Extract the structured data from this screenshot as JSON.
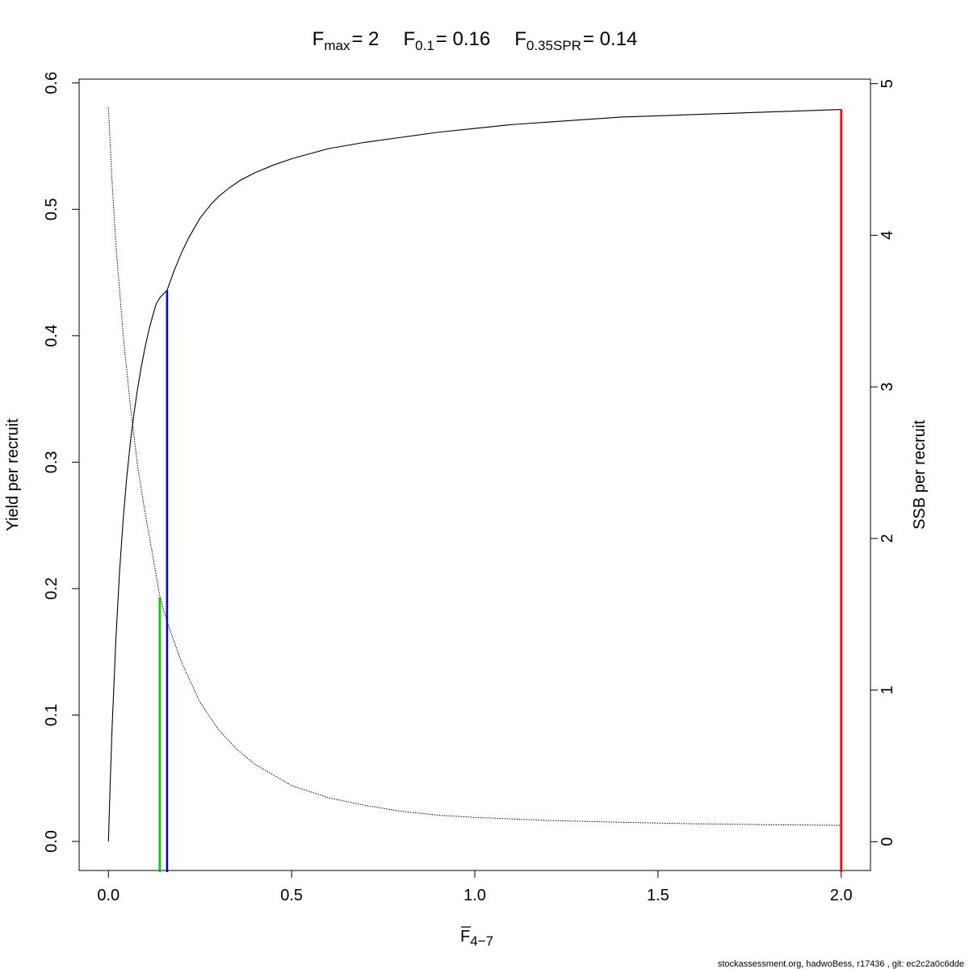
{
  "chart_data": {
    "type": "line",
    "title_parts": {
      "fmax": {
        "symbol": "F",
        "sub": "max",
        "value": "= 2"
      },
      "f01": {
        "symbol": "F",
        "sub": "0.1",
        "value": "= 0.16"
      },
      "fspr": {
        "symbol": "F",
        "sub": "0.35SPR",
        "value": "= 0.14"
      }
    },
    "xlabel": {
      "symbol": "F",
      "sub": "4−7"
    },
    "ylabel": "Yield per recruit",
    "y2label": "SSB per recruit",
    "xlim": [
      -0.08,
      2.08
    ],
    "ylim": [
      -0.023,
      0.603
    ],
    "y2lim": [
      -0.19,
      5.03
    ],
    "x_ticks": [
      {
        "value": 0.0,
        "label": "0.0"
      },
      {
        "value": 0.5,
        "label": "0.5"
      },
      {
        "value": 1.0,
        "label": "1.0"
      },
      {
        "value": 1.5,
        "label": "1.5"
      },
      {
        "value": 2.0,
        "label": "2.0"
      }
    ],
    "y_ticks": [
      {
        "value": 0.0,
        "label": "0.0"
      },
      {
        "value": 0.1,
        "label": "0.1"
      },
      {
        "value": 0.2,
        "label": "0.2"
      },
      {
        "value": 0.3,
        "label": "0.3"
      },
      {
        "value": 0.4,
        "label": "0.4"
      },
      {
        "value": 0.5,
        "label": "0.5"
      },
      {
        "value": 0.6,
        "label": "0.6"
      }
    ],
    "y2_ticks": [
      {
        "value": 0,
        "label": "0"
      },
      {
        "value": 1,
        "label": "1"
      },
      {
        "value": 2,
        "label": "2"
      },
      {
        "value": 3,
        "label": "3"
      },
      {
        "value": 4,
        "label": "4"
      },
      {
        "value": 5,
        "label": "5"
      }
    ],
    "series": [
      {
        "axis": "left",
        "style": "solid",
        "color": "#000000",
        "x": [
          0,
          0.005,
          0.01,
          0.02,
          0.03,
          0.04,
          0.05,
          0.06,
          0.07,
          0.08,
          0.09,
          0.1,
          0.11,
          0.12,
          0.13,
          0.14,
          0.15,
          0.16,
          0.18,
          0.2,
          0.22,
          0.25,
          0.28,
          0.3,
          0.33,
          0.36,
          0.4,
          0.45,
          0.5,
          0.55,
          0.6,
          0.7,
          0.8,
          0.9,
          1.0,
          1.1,
          1.2,
          1.3,
          1.4,
          1.5,
          1.6,
          1.7,
          1.8,
          1.9,
          2.0
        ],
        "y": [
          0,
          0.048,
          0.09,
          0.158,
          0.212,
          0.254,
          0.288,
          0.316,
          0.339,
          0.359,
          0.376,
          0.391,
          0.404,
          0.415,
          0.425,
          0.43,
          0.433,
          0.436,
          0.452,
          0.466,
          0.478,
          0.493,
          0.504,
          0.51,
          0.517,
          0.523,
          0.529,
          0.535,
          0.54,
          0.544,
          0.548,
          0.553,
          0.557,
          0.561,
          0.564,
          0.567,
          0.569,
          0.571,
          0.573,
          0.574,
          0.575,
          0.576,
          0.577,
          0.578,
          0.579
        ]
      },
      {
        "axis": "right",
        "style": "dotted",
        "color": "#000000",
        "x": [
          0,
          0.01,
          0.02,
          0.04,
          0.06,
          0.08,
          0.1,
          0.12,
          0.14,
          0.16,
          0.2,
          0.25,
          0.3,
          0.35,
          0.4,
          0.5,
          0.6,
          0.7,
          0.8,
          0.9,
          1.0,
          1.2,
          1.4,
          1.6,
          1.8,
          2.0
        ],
        "y": [
          4.84,
          4.35,
          3.95,
          3.35,
          2.87,
          2.47,
          2.17,
          1.9,
          1.62,
          1.45,
          1.18,
          0.92,
          0.74,
          0.61,
          0.51,
          0.37,
          0.29,
          0.24,
          0.2,
          0.175,
          0.16,
          0.14,
          0.128,
          0.118,
          0.112,
          0.108
        ]
      }
    ],
    "reference_lines": [
      {
        "name": "Fmax",
        "x": 2.0,
        "y_top": 0.579,
        "color": "#ff0000"
      },
      {
        "name": "F0.1",
        "x": 0.16,
        "y_top": 0.436,
        "color": "#0000ff"
      },
      {
        "name": "F0.35SPR",
        "x": 0.14,
        "y_top": 0.193,
        "color": "#00cc00"
      }
    ],
    "footer": "stockassessment.org, hadwoBess, r17436 , git: ec2c2a0c6dde"
  }
}
